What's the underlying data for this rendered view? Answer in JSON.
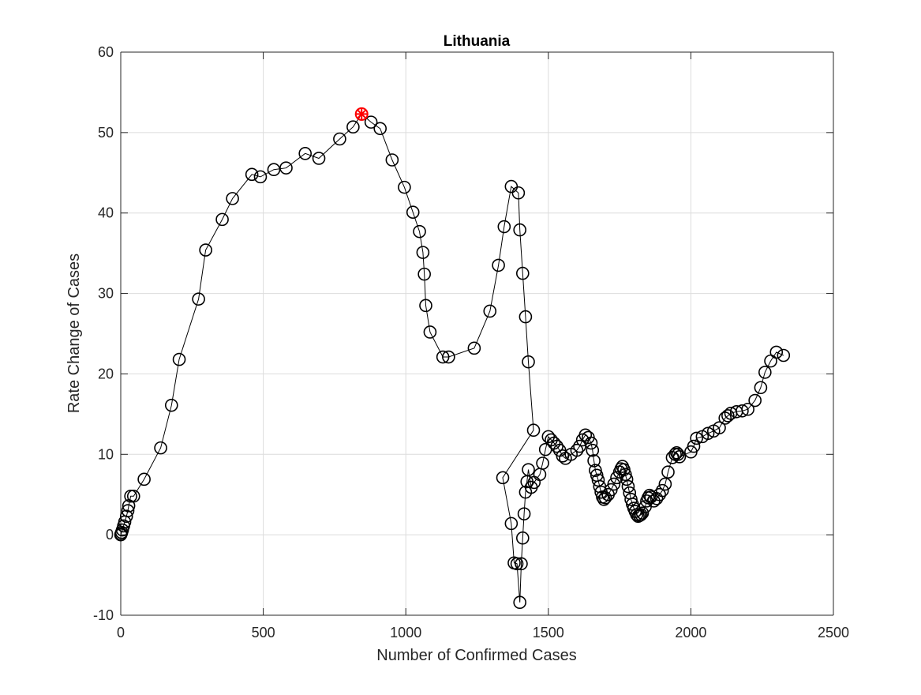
{
  "chart_data": {
    "type": "line",
    "title": "Lithuania",
    "xlabel": "Number of Confirmed Cases",
    "ylabel": "Rate Change of Cases",
    "xlim": [
      0,
      2500
    ],
    "ylim": [
      -10,
      60
    ],
    "xticks": [
      0,
      500,
      1000,
      1500,
      2000,
      2500
    ],
    "yticks": [
      -10,
      0,
      10,
      20,
      30,
      40,
      50,
      60
    ],
    "xtick_labels": [
      "0",
      "500",
      "1000",
      "1500",
      "2000",
      "2500"
    ],
    "ytick_labels": [
      "-10",
      "0",
      "10",
      "20",
      "30",
      "40",
      "50",
      "60"
    ],
    "grid": true,
    "series": [
      {
        "marker": "circle",
        "color": "#000000",
        "x": [
          0,
          1,
          3,
          6,
          10,
          14,
          20,
          25,
          28,
          35,
          45,
          82,
          140,
          178,
          205,
          273,
          298,
          356,
          392,
          460,
          490,
          537,
          580,
          647,
          695,
          768,
          815,
          845,
          878,
          910,
          952,
          995,
          1025,
          1048,
          1060,
          1065,
          1070,
          1085,
          1130,
          1150,
          1240,
          1295,
          1325,
          1345,
          1370,
          1395,
          1400,
          1410,
          1420,
          1430,
          1448,
          1340,
          1370,
          1380,
          1390,
          1400,
          1405,
          1410,
          1415,
          1420,
          1425,
          1430,
          1440,
          1450,
          1470,
          1480,
          1490,
          1500,
          1510,
          1520,
          1530,
          1540,
          1550,
          1560,
          1580,
          1600,
          1610,
          1620,
          1630,
          1640,
          1650,
          1655,
          1660,
          1665,
          1670,
          1675,
          1680,
          1685,
          1690,
          1695,
          1700,
          1710,
          1720,
          1730,
          1740,
          1750,
          1755,
          1760,
          1765,
          1770,
          1775,
          1780,
          1785,
          1790,
          1795,
          1800,
          1805,
          1810,
          1815,
          1820,
          1825,
          1830,
          1840,
          1845,
          1850,
          1855,
          1860,
          1870,
          1880,
          1890,
          1900,
          1910,
          1920,
          1935,
          1945,
          1950,
          1955,
          1960,
          2000,
          2010,
          2020,
          2040,
          2060,
          2080,
          2100,
          2120,
          2130,
          2140,
          2160,
          2180,
          2200,
          2225,
          2245,
          2260,
          2280,
          2300,
          2325
        ],
        "y": [
          0,
          0.1,
          0.3,
          0.6,
          1.1,
          1.6,
          2.3,
          3.0,
          3.6,
          4.8,
          4.8,
          6.9,
          10.8,
          16.1,
          21.8,
          29.3,
          35.4,
          39.2,
          41.8,
          44.8,
          44.5,
          45.4,
          45.6,
          47.4,
          46.8,
          49.2,
          50.7,
          52.3,
          51.3,
          50.5,
          46.6,
          43.2,
          40.1,
          37.7,
          35.1,
          32.4,
          28.5,
          25.2,
          22.1,
          22.1,
          23.2,
          27.8,
          33.5,
          38.3,
          43.3,
          42.5,
          37.9,
          32.5,
          27.1,
          21.5,
          13.0,
          7.1,
          1.4,
          -3.5,
          -3.6,
          -8.4,
          -3.6,
          -0.4,
          2.6,
          5.3,
          6.6,
          8.1,
          5.9,
          6.5,
          7.5,
          8.9,
          10.6,
          12.2,
          11.8,
          11.4,
          11.0,
          10.5,
          9.8,
          9.5,
          10.0,
          10.5,
          11.0,
          11.8,
          12.4,
          12.1,
          11.4,
          10.5,
          9.2,
          8.0,
          7.4,
          6.8,
          6.0,
          5.3,
          4.7,
          4.4,
          4.6,
          5.0,
          5.6,
          6.3,
          7.1,
          7.8,
          8.2,
          8.5,
          8.1,
          7.5,
          6.9,
          6.0,
          5.2,
          4.4,
          3.8,
          3.3,
          2.9,
          2.5,
          2.3,
          2.4,
          2.5,
          2.7,
          3.5,
          4.2,
          4.6,
          4.9,
          4.7,
          4.2,
          4.5,
          5.0,
          5.5,
          6.3,
          7.8,
          9.6,
          10.0,
          10.2,
          10.0,
          9.7,
          10.3,
          11.0,
          12.0,
          12.2,
          12.6,
          12.9,
          13.3,
          14.5,
          14.8,
          15.1,
          15.3,
          15.4,
          15.6,
          16.7,
          18.3,
          20.2,
          21.6,
          22.7,
          22.3
        ]
      }
    ],
    "highlight": {
      "x": 845,
      "y": 52.3,
      "marker": "star-circle",
      "color": "#ff0000"
    }
  }
}
